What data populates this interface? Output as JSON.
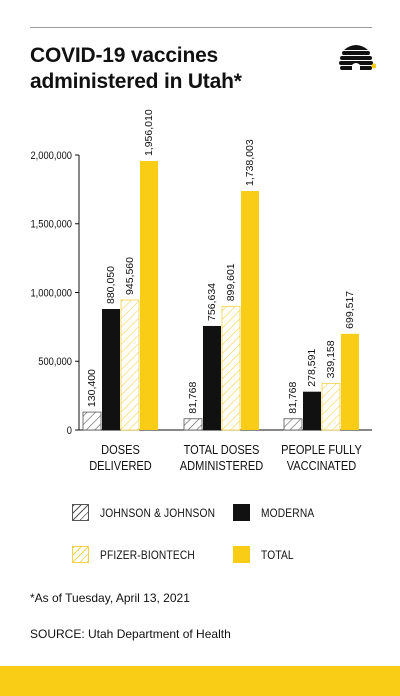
{
  "title": "COVID-19 vaccines administered in Utah*",
  "footnote": "*As of Tuesday, April 13, 2021",
  "source": "SOURCE: Utah Department of Health",
  "colors": {
    "accent": "#f9cc16",
    "black": "#111111",
    "gray_rule": "#9a9a9a",
    "jj_hatch": "#555555",
    "pfizer_hatch": "#f3d14a"
  },
  "logo_icon": "beehive-icon",
  "chart_data": {
    "type": "bar",
    "title": "COVID-19 vaccines administered in Utah*",
    "xlabel": "",
    "ylabel": "",
    "categories": [
      [
        "DOSES",
        "DELIVERED"
      ],
      [
        "TOTAL DOSES",
        "ADMINISTERED"
      ],
      [
        "PEOPLE FULLY",
        "VACCINATED"
      ]
    ],
    "ylim": [
      0,
      2000000
    ],
    "yticks": [
      0,
      500000,
      1000000,
      1500000,
      2000000
    ],
    "ytick_labels": [
      "0",
      "500,000",
      "1,000,000",
      "1,500,000",
      "2,000,000"
    ],
    "grid": false,
    "legend_position": "bottom",
    "series": [
      {
        "name": "JOHNSON & JOHNSON",
        "style": "hatch-gray",
        "values": [
          130400,
          81768,
          81768
        ],
        "labels": [
          "130,400",
          "81,768",
          "81,768"
        ]
      },
      {
        "name": "MODERNA",
        "style": "solid-black",
        "values": [
          880050,
          756634,
          278591
        ],
        "labels": [
          "880,050",
          "756,634",
          "278,591"
        ]
      },
      {
        "name": "PFIZER-BIONTECH",
        "style": "hatch-yellow",
        "values": [
          945560,
          899601,
          339158
        ],
        "labels": [
          "945,560",
          "899,601",
          "339,158"
        ]
      },
      {
        "name": "TOTAL",
        "style": "solid-yellow",
        "values": [
          1956010,
          1738003,
          699517
        ],
        "labels": [
          "1,956,010",
          "1,738,003",
          "699,517"
        ]
      }
    ]
  }
}
